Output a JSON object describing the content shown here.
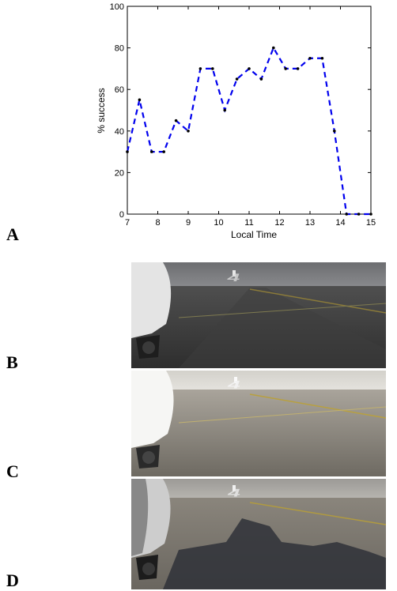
{
  "panels": {
    "a": "A",
    "b": "B",
    "c": "C",
    "d": "D"
  },
  "chart_data": {
    "type": "line",
    "title": "",
    "xlabel": "Local Time",
    "ylabel": "% success",
    "xlim": [
      7,
      15
    ],
    "ylim": [
      0,
      100
    ],
    "xticks": [
      7,
      8,
      9,
      10,
      11,
      12,
      13,
      14,
      15
    ],
    "yticks": [
      0,
      20,
      40,
      60,
      80,
      100
    ],
    "grid": false,
    "line_style": "dashed",
    "line_color": "#0000ee",
    "marker_color": "#000000",
    "series": [
      {
        "x": [
          7,
          7.4,
          7.8,
          8.2,
          8.6,
          9,
          9.4,
          9.8,
          10.2,
          10.6,
          11,
          11.4,
          11.8,
          12.2,
          12.6,
          13,
          13.4,
          13.8,
          14.2,
          14.6,
          15
        ],
        "values": [
          30,
          55,
          30,
          30,
          45,
          40,
          70,
          70,
          50,
          65,
          70,
          65,
          80,
          70,
          70,
          75,
          75,
          40,
          0,
          0,
          0
        ]
      }
    ]
  },
  "photos": [
    {
      "panel": "B",
      "scene": "runway-overcast"
    },
    {
      "panel": "C",
      "scene": "runway-hazy-bright"
    },
    {
      "panel": "D",
      "scene": "runway-sunny-shadow"
    }
  ]
}
